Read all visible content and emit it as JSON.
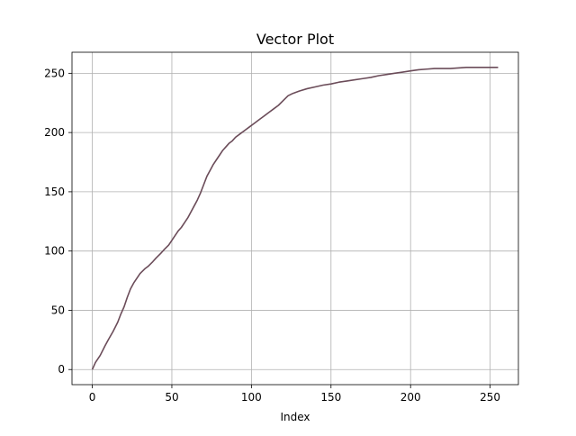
{
  "chart_data": {
    "type": "line",
    "title": "Vector Plot",
    "xlabel": "Index",
    "ylabel": "",
    "xlim": [
      -12.75,
      267.75
    ],
    "ylim": [
      -12.75,
      267.75
    ],
    "xticks": [
      0,
      50,
      100,
      150,
      200,
      250
    ],
    "yticks": [
      0,
      50,
      100,
      150,
      200,
      250
    ],
    "grid": true,
    "series": [
      {
        "color": "#6b4c59",
        "x": [
          0,
          2,
          5,
          8,
          10,
          13,
          16,
          18,
          20,
          22,
          24,
          26,
          28,
          30,
          33,
          35,
          38,
          40,
          43,
          45,
          48,
          50,
          52,
          54,
          56,
          58,
          60,
          62,
          64,
          66,
          68,
          70,
          72,
          74,
          76,
          78,
          80,
          82,
          84,
          86,
          88,
          90,
          93,
          96,
          99,
          102,
          105,
          108,
          111,
          114,
          117,
          120,
          123,
          126,
          130,
          135,
          140,
          145,
          150,
          155,
          160,
          165,
          170,
          175,
          180,
          185,
          190,
          195,
          200,
          205,
          210,
          215,
          220,
          225,
          230,
          235,
          240,
          245,
          250,
          255
        ],
        "y": [
          0,
          6,
          12,
          20,
          25,
          32,
          40,
          47,
          53,
          61,
          68,
          73,
          77,
          81,
          85,
          87,
          91,
          94,
          98,
          101,
          105,
          109,
          113,
          117,
          120,
          124,
          128,
          133,
          138,
          143,
          149,
          156,
          163,
          168,
          173,
          177,
          181,
          185,
          188,
          191,
          193,
          196,
          199,
          202,
          205,
          208,
          211,
          214,
          217,
          220,
          223,
          227,
          231,
          233,
          235,
          237,
          238.5,
          240,
          241,
          242.5,
          243.5,
          244.5,
          245.5,
          246.5,
          248,
          249,
          250,
          251,
          252,
          253,
          253.5,
          254,
          254,
          254,
          254.5,
          255,
          255,
          255,
          255,
          255
        ]
      }
    ]
  }
}
